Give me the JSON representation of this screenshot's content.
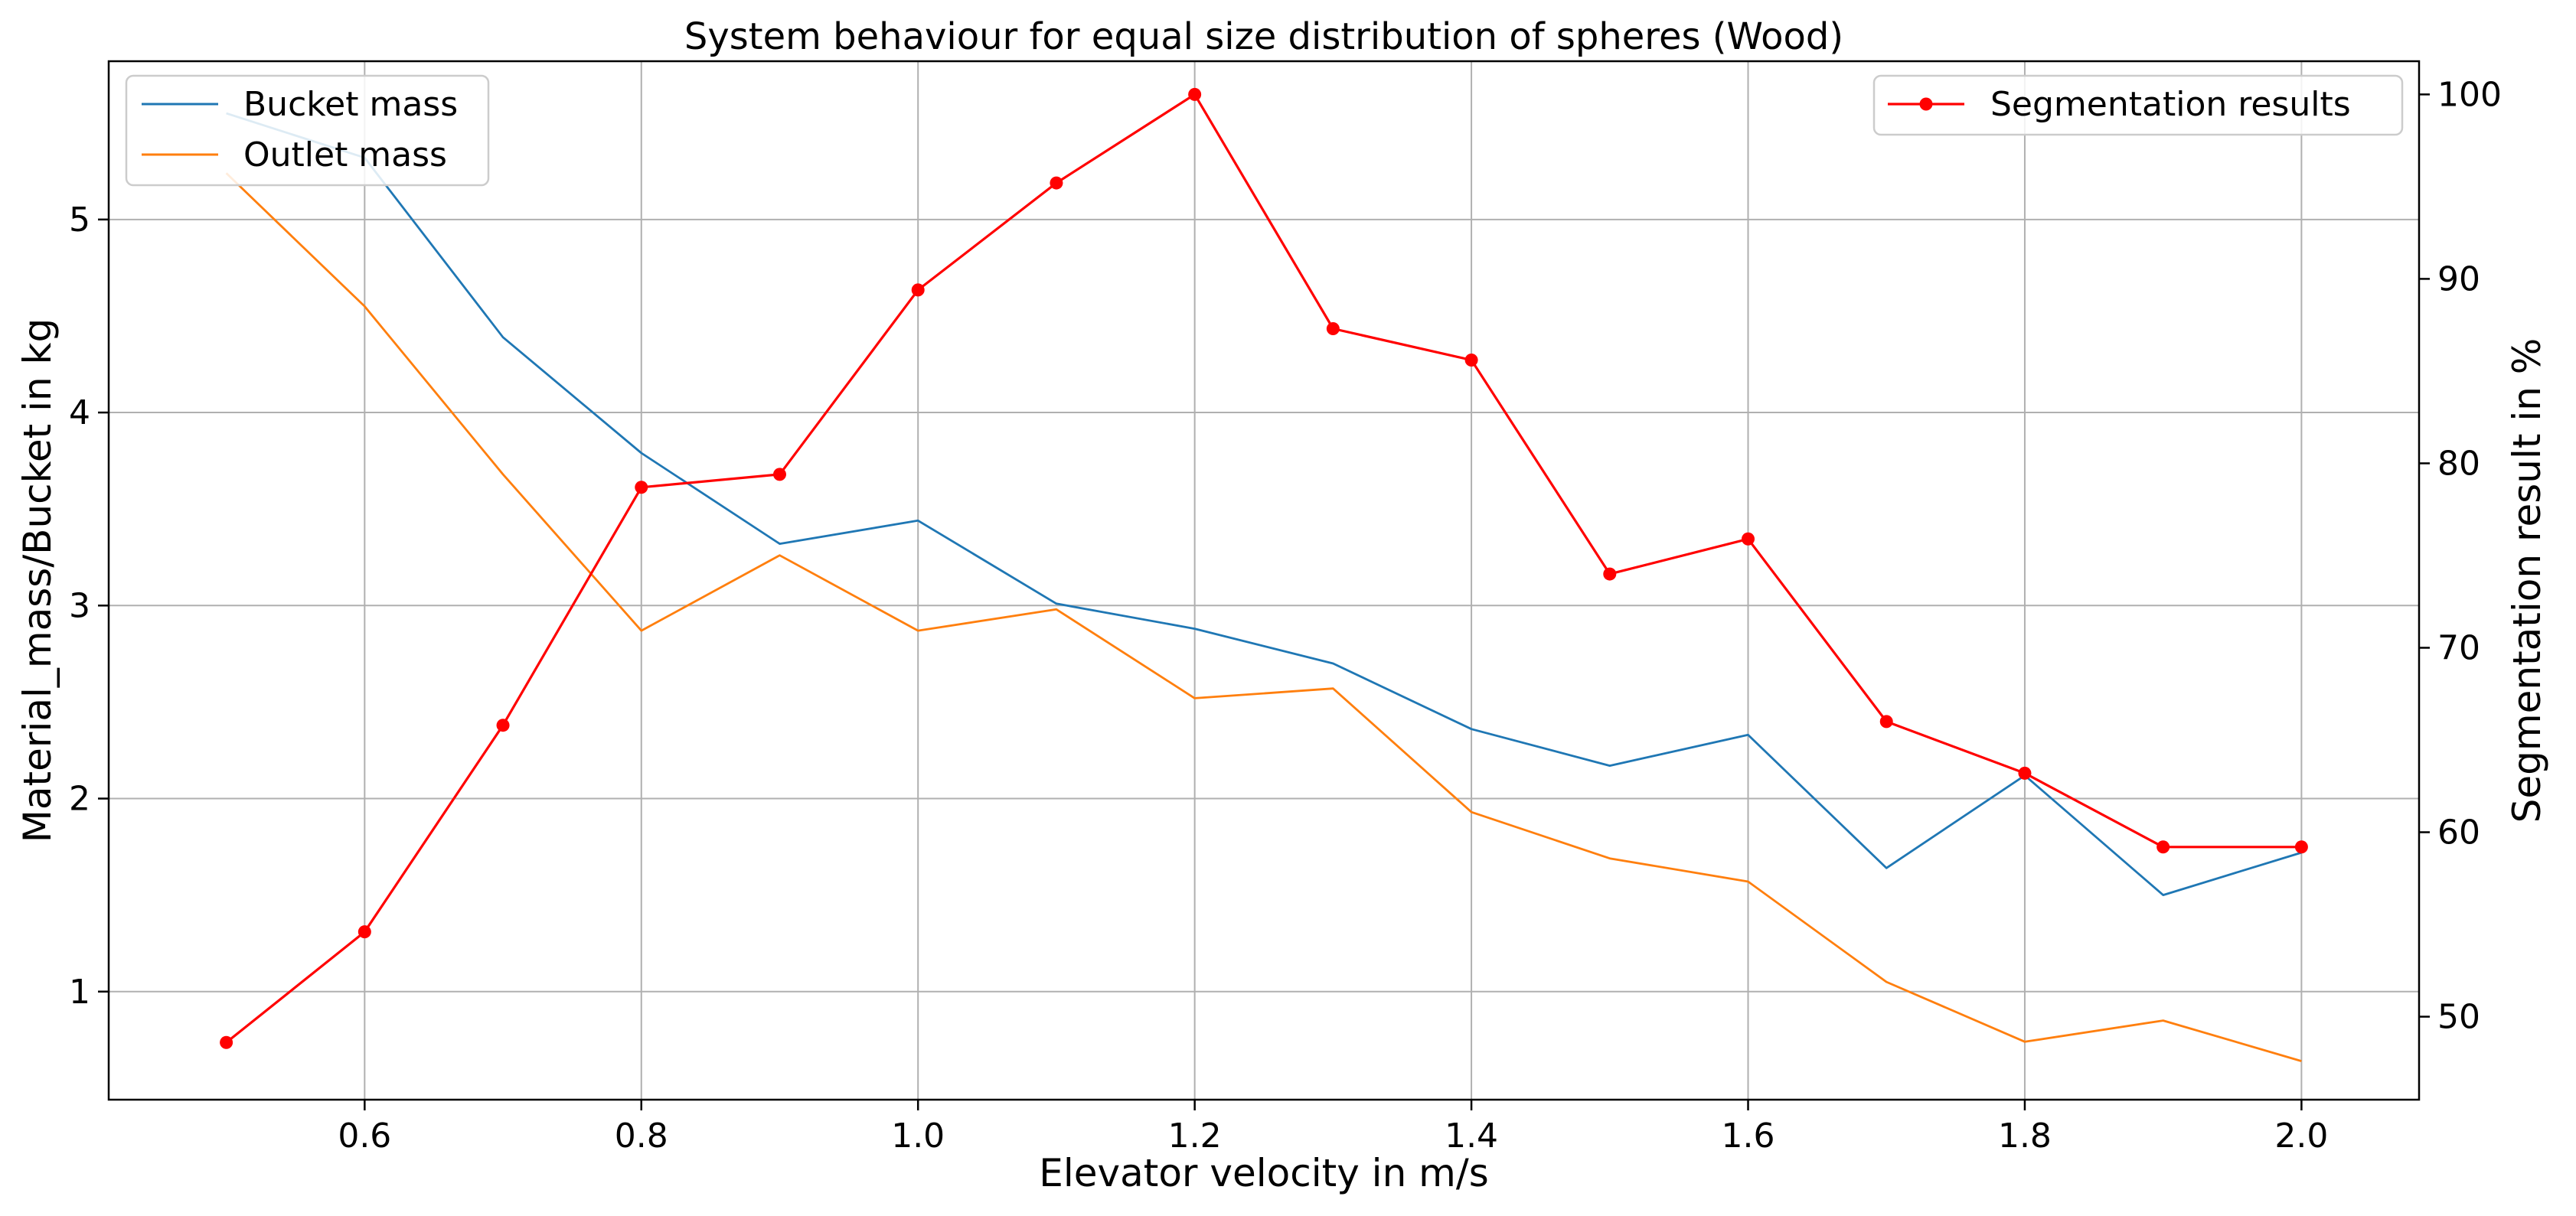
{
  "chart_data": {
    "type": "line",
    "title": "System behaviour for equal size distribution of spheres (Wood)",
    "xlabel": "Elevator velocity in m/s",
    "ylabel": "Material_mass/Bucket in kg",
    "ylabel_right": "Segmentation result in %",
    "xlim": [
      0.415,
      2.085
    ],
    "ylim": [
      0.44,
      5.82
    ],
    "ylim_right": [
      45.5,
      101.8
    ],
    "xticks": [
      0.6,
      0.8,
      1.0,
      1.2,
      1.4,
      1.6,
      1.8,
      2.0
    ],
    "xtick_labels": [
      "0.6",
      "0.8",
      "1.0",
      "1.2",
      "1.4",
      "1.6",
      "1.8",
      "2.0"
    ],
    "yticks": [
      1,
      2,
      3,
      4,
      5
    ],
    "ytick_labels": [
      "1",
      "2",
      "3",
      "4",
      "5"
    ],
    "yticks_right": [
      50,
      60,
      70,
      80,
      90,
      100
    ],
    "ytick_labels_right": [
      "50",
      "60",
      "70",
      "80",
      "90",
      "100"
    ],
    "grid": true,
    "x": [
      0.5,
      0.6,
      0.7,
      0.8,
      0.9,
      1.0,
      1.1,
      1.2,
      1.3,
      1.4,
      1.5,
      1.6,
      1.7,
      1.8,
      1.9,
      2.0
    ],
    "series": [
      {
        "name": "Bucket mass",
        "axis": "left",
        "color": "#1f77b4",
        "marker": false,
        "values": [
          5.55,
          5.32,
          4.39,
          3.79,
          3.32,
          3.44,
          3.01,
          2.88,
          2.7,
          2.36,
          2.17,
          2.33,
          1.64,
          2.12,
          1.5,
          1.72
        ]
      },
      {
        "name": "Outlet mass",
        "axis": "left",
        "color": "#ff7f0e",
        "marker": false,
        "values": [
          5.24,
          4.55,
          3.68,
          2.87,
          3.26,
          2.87,
          2.98,
          2.52,
          2.57,
          1.93,
          1.69,
          1.57,
          1.05,
          0.74,
          0.85,
          0.64
        ]
      },
      {
        "name": "Segmentation results",
        "axis": "right",
        "color": "#ff0000",
        "marker": true,
        "values": [
          48.6,
          54.6,
          65.8,
          78.7,
          79.4,
          89.4,
          95.2,
          100.0,
          87.3,
          85.6,
          74.0,
          75.9,
          66.0,
          63.2,
          59.2,
          59.2
        ]
      }
    ],
    "legend_left": [
      "Bucket mass",
      "Outlet mass"
    ],
    "legend_right": [
      "Segmentation results"
    ],
    "legend_left_position": "upper-left",
    "legend_right_position": "upper-right"
  }
}
